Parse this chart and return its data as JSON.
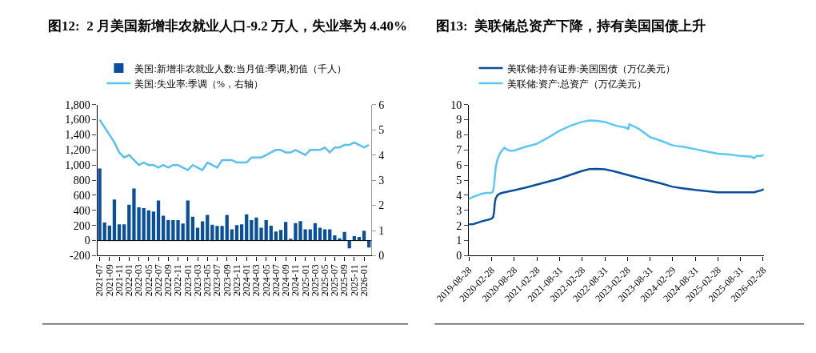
{
  "chart_data": [
    {
      "type": "bar",
      "title": "图12:  2 月美国新增非农就业人口-9.2 万人，失业率为 4.40%",
      "categories": [
        "2021-07",
        null,
        "2021-09",
        null,
        "2021-11",
        null,
        "2022-01",
        null,
        "2022-03",
        null,
        "2022-05",
        null,
        "2022-07",
        null,
        "2022-09",
        null,
        "2022-11",
        null,
        "2023-01",
        null,
        "2023-03",
        null,
        "2023-05",
        null,
        "2023-07",
        null,
        "2023-09",
        null,
        "2023-11",
        null,
        "2024-01",
        null,
        "2024-03",
        null,
        "2024-05",
        null,
        "2024-07",
        null,
        "2024-09",
        null,
        "2024-11",
        null,
        "2025-01",
        null,
        "2025-03",
        null,
        "2025-05",
        null,
        "2025-07",
        null,
        "2025-09",
        null,
        "2025-11",
        null,
        "2026-01",
        null
      ],
      "series": [
        {
          "name": "美国:新增非农就业人数:当月值:季调,初值（千人）",
          "type": "bar",
          "color": "#0a4f9c",
          "values": [
            955,
            240,
            200,
            545,
            215,
            215,
            475,
            690,
            440,
            430,
            400,
            385,
            530,
            330,
            270,
            270,
            270,
            225,
            530,
            315,
            170,
            255,
            340,
            210,
            195,
            195,
            340,
            150,
            205,
            215,
            348,
            271,
            305,
            171,
            271,
            198,
            121,
            141,
            248,
            25,
            231,
            258,
            148,
            148,
            231,
            171,
            148,
            148,
            71,
            31,
            115,
            -102,
            58,
            48,
            131,
            -92
          ]
        },
        {
          "name": "美国:失业率:季调（%，右轴）",
          "type": "line",
          "axis": "y2",
          "color": "#5bc0f0",
          "values": [
            5.4,
            5.1,
            4.8,
            4.5,
            4.1,
            3.9,
            4.0,
            3.8,
            3.6,
            3.7,
            3.6,
            3.6,
            3.5,
            3.6,
            3.5,
            3.6,
            3.6,
            3.5,
            3.4,
            3.6,
            3.5,
            3.4,
            3.7,
            3.6,
            3.5,
            3.8,
            3.8,
            3.8,
            3.7,
            3.7,
            3.7,
            3.9,
            3.9,
            3.9,
            4.0,
            4.1,
            4.2,
            4.2,
            4.1,
            4.1,
            4.2,
            4.1,
            4.0,
            4.2,
            4.2,
            4.2,
            4.3,
            4.1,
            4.3,
            4.3,
            4.4,
            4.4,
            4.5,
            4.4,
            4.3,
            4.4
          ]
        }
      ],
      "ylim": [
        -200,
        1800
      ],
      "yticks": [
        {
          "value": -200,
          "label": "-200"
        },
        0,
        200,
        400,
        600,
        800,
        {
          "value": 1000,
          "label": "1,000"
        },
        {
          "value": 1200,
          "label": "1,200"
        },
        {
          "value": 1400,
          "label": "1,400"
        },
        {
          "value": 1600,
          "label": "1,600"
        },
        {
          "value": 1800,
          "label": "1,800"
        }
      ],
      "y2lim": [
        0,
        6
      ],
      "y2ticks": [
        0,
        1,
        2,
        3,
        4,
        5,
        6
      ],
      "legend": "top"
    },
    {
      "type": "line",
      "title": "图13:  美联储总资产下降，持有美国国债上升",
      "series": [
        {
          "name": "美联储:持有证券:美国国债（万亿美元）",
          "color": "#0a4f9c",
          "x": [
            "2019-08-28",
            "2019-10-02",
            "2019-11-06",
            "2019-12-11",
            "2020-01-15",
            "2020-02-19",
            "2020-03-04",
            "2020-03-11",
            "2020-03-18",
            "2020-03-25",
            "2020-04-01",
            "2020-04-15",
            "2020-05-06",
            "2020-06-03",
            "2020-08-26",
            "2020-11-25",
            "2021-02-24",
            "2021-05-26",
            "2021-08-25",
            "2021-11-24",
            "2022-02-23",
            "2022-04-27",
            "2022-06-29",
            "2022-08-31",
            "2022-11-30",
            "2023-02-28",
            "2023-05-31",
            "2023-08-30",
            "2023-11-29",
            "2024-02-28",
            "2024-05-29",
            "2024-08-28",
            "2024-11-27",
            "2025-02-26",
            "2025-05-28",
            "2025-08-27",
            "2025-11-26",
            "2025-12-17",
            "2026-01-14",
            "2026-02-11",
            "2026-03-04"
          ],
          "values": [
            2.08,
            2.09,
            2.18,
            2.28,
            2.35,
            2.42,
            2.5,
            2.55,
            2.9,
            3.55,
            3.8,
            4.0,
            4.12,
            4.18,
            4.33,
            4.5,
            4.7,
            4.9,
            5.1,
            5.35,
            5.6,
            5.73,
            5.74,
            5.72,
            5.55,
            5.35,
            5.15,
            4.96,
            4.78,
            4.56,
            4.45,
            4.35,
            4.27,
            4.2,
            4.2,
            4.19,
            4.19,
            4.2,
            4.26,
            4.32,
            4.4
          ]
        },
        {
          "name": "美联储:资产:总资产（万亿美元）",
          "color": "#5bc8f5",
          "x": [
            "2019-08-28",
            "2019-10-02",
            "2019-11-06",
            "2019-12-11",
            "2020-01-15",
            "2020-02-19",
            "2020-03-04",
            "2020-03-11",
            "2020-03-18",
            "2020-03-25",
            "2020-04-01",
            "2020-04-15",
            "2020-05-06",
            "2020-06-10",
            "2020-06-24",
            "2020-07-22",
            "2020-08-26",
            "2020-11-25",
            "2021-02-24",
            "2021-05-26",
            "2021-08-25",
            "2021-11-24",
            "2022-02-23",
            "2022-04-27",
            "2022-06-29",
            "2022-08-31",
            "2022-11-30",
            "2023-02-28",
            "2023-03-08",
            "2023-03-15",
            "2023-05-31",
            "2023-08-30",
            "2023-11-29",
            "2024-02-28",
            "2024-05-29",
            "2024-08-28",
            "2024-11-27",
            "2025-02-26",
            "2025-05-28",
            "2025-08-27",
            "2025-11-26",
            "2025-12-17",
            "2026-01-07",
            "2026-02-11",
            "2026-03-04"
          ],
          "values": [
            3.75,
            3.9,
            4.0,
            4.1,
            4.15,
            4.15,
            4.2,
            4.3,
            4.7,
            5.3,
            5.85,
            6.4,
            6.8,
            7.15,
            7.05,
            6.95,
            6.95,
            7.2,
            7.4,
            7.8,
            8.25,
            8.6,
            8.85,
            8.95,
            8.92,
            8.85,
            8.6,
            8.45,
            8.35,
            8.7,
            8.4,
            7.85,
            7.6,
            7.3,
            7.2,
            7.05,
            6.9,
            6.75,
            6.7,
            6.6,
            6.55,
            6.45,
            6.6,
            6.6,
            6.67
          ]
        }
      ],
      "xlim": [
        "2019-08-28",
        "2026-03-10"
      ],
      "xticks": [
        {
          "value": "2019-08-28",
          "label": "2019-08-28"
        },
        {
          "value": "2020-02-28",
          "label": "2020-02-28"
        },
        {
          "value": "2020-08-28",
          "label": "2020-08-28"
        },
        {
          "value": "2021-02-28",
          "label": "2021-02-28"
        },
        {
          "value": "2021-08-31",
          "label": "2021-08-31"
        },
        {
          "value": "2022-02-28",
          "label": "2022-02-28"
        },
        {
          "value": "2022-08-31",
          "label": "2022-08-31"
        },
        {
          "value": "2023-02-28",
          "label": "2023-02-28"
        },
        {
          "value": "2023-08-31",
          "label": "2023-08-31"
        },
        {
          "value": "2024-02-29",
          "label": "2024-02-29"
        },
        {
          "value": "2024-08-31",
          "label": "2024-08-31"
        },
        {
          "value": "2025-02-28",
          "label": "2025-02-28"
        },
        {
          "value": "2025-08-31",
          "label": "2025-08-31"
        },
        {
          "value": "2026-02-28",
          "label": "2026-02-28"
        }
      ],
      "ylim": [
        0,
        10
      ],
      "yticks": [
        0,
        1,
        2,
        3,
        4,
        5,
        6,
        7,
        8,
        9,
        10
      ],
      "legend": "top"
    }
  ]
}
